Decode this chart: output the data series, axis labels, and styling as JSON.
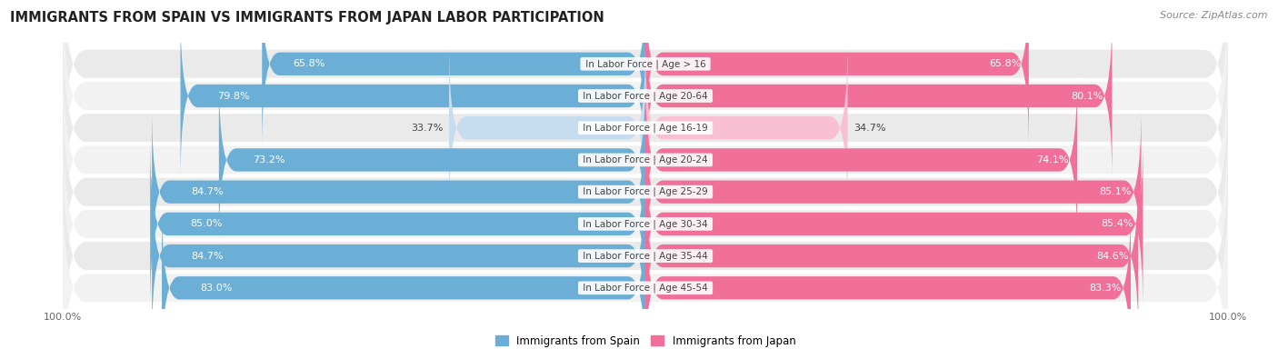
{
  "title": "IMMIGRANTS FROM SPAIN VS IMMIGRANTS FROM JAPAN LABOR PARTICIPATION",
  "source": "Source: ZipAtlas.com",
  "categories": [
    "In Labor Force | Age > 16",
    "In Labor Force | Age 20-64",
    "In Labor Force | Age 16-19",
    "In Labor Force | Age 20-24",
    "In Labor Force | Age 25-29",
    "In Labor Force | Age 30-34",
    "In Labor Force | Age 35-44",
    "In Labor Force | Age 45-54"
  ],
  "spain_values": [
    65.8,
    79.8,
    33.7,
    73.2,
    84.7,
    85.0,
    84.7,
    83.0
  ],
  "japan_values": [
    65.8,
    80.1,
    34.7,
    74.1,
    85.1,
    85.4,
    84.6,
    83.3
  ],
  "spain_color": "#6BAED6",
  "japan_color": "#F0709A",
  "spain_color_light": "#C6DCEF",
  "japan_color_light": "#F9C0D4",
  "row_bg_color": "#EAEAEA",
  "row_bg_alt": "#F2F2F2",
  "label_white": "#ffffff",
  "label_dark": "#444444",
  "max_value": 100.0,
  "legend_spain": "Immigrants from Spain",
  "legend_japan": "Immigrants from Japan",
  "title_fontsize": 10.5,
  "source_fontsize": 8,
  "bar_label_fontsize": 8,
  "category_fontsize": 7.5,
  "axis_label_fontsize": 8,
  "light_threshold": 40
}
